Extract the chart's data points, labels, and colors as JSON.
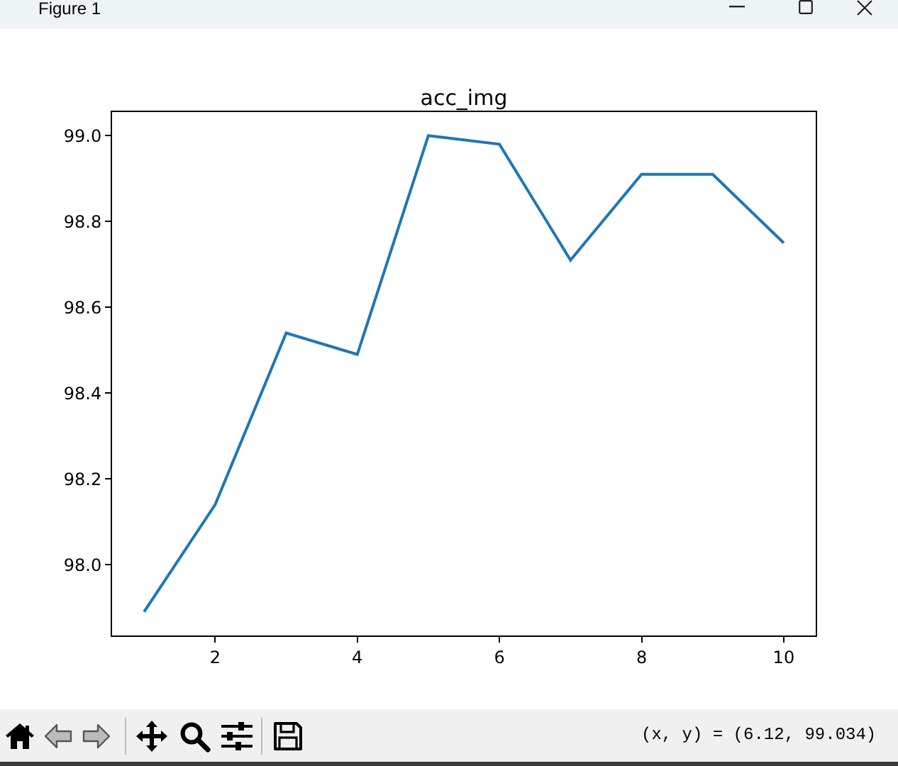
{
  "chart_data": {
    "type": "line",
    "title": "acc_img",
    "x": [
      1,
      2,
      3,
      4,
      5,
      6,
      7,
      8,
      9,
      10
    ],
    "series": [
      {
        "color": "#1f77b4",
        "values": [
          97.89,
          98.14,
          98.54,
          98.49,
          99.0,
          98.98,
          98.71,
          98.91,
          98.91,
          98.75
        ]
      }
    ],
    "xlim": [
      0.55,
      10.45
    ],
    "xticks": [
      2,
      4,
      6,
      8,
      10
    ],
    "ylim": [
      97.835,
      99.055
    ],
    "yticks": [
      {
        "value": 98,
        "label": "98.0"
      },
      98.2,
      98.4,
      98.6,
      98.8,
      {
        "value": 99,
        "label": "99.0"
      }
    ],
    "grid": false,
    "marker": "none",
    "line_style": "solid",
    "annotations": [
      "Figure 1",
      "(x, y) = (6.12, 99.034)"
    ]
  }
}
